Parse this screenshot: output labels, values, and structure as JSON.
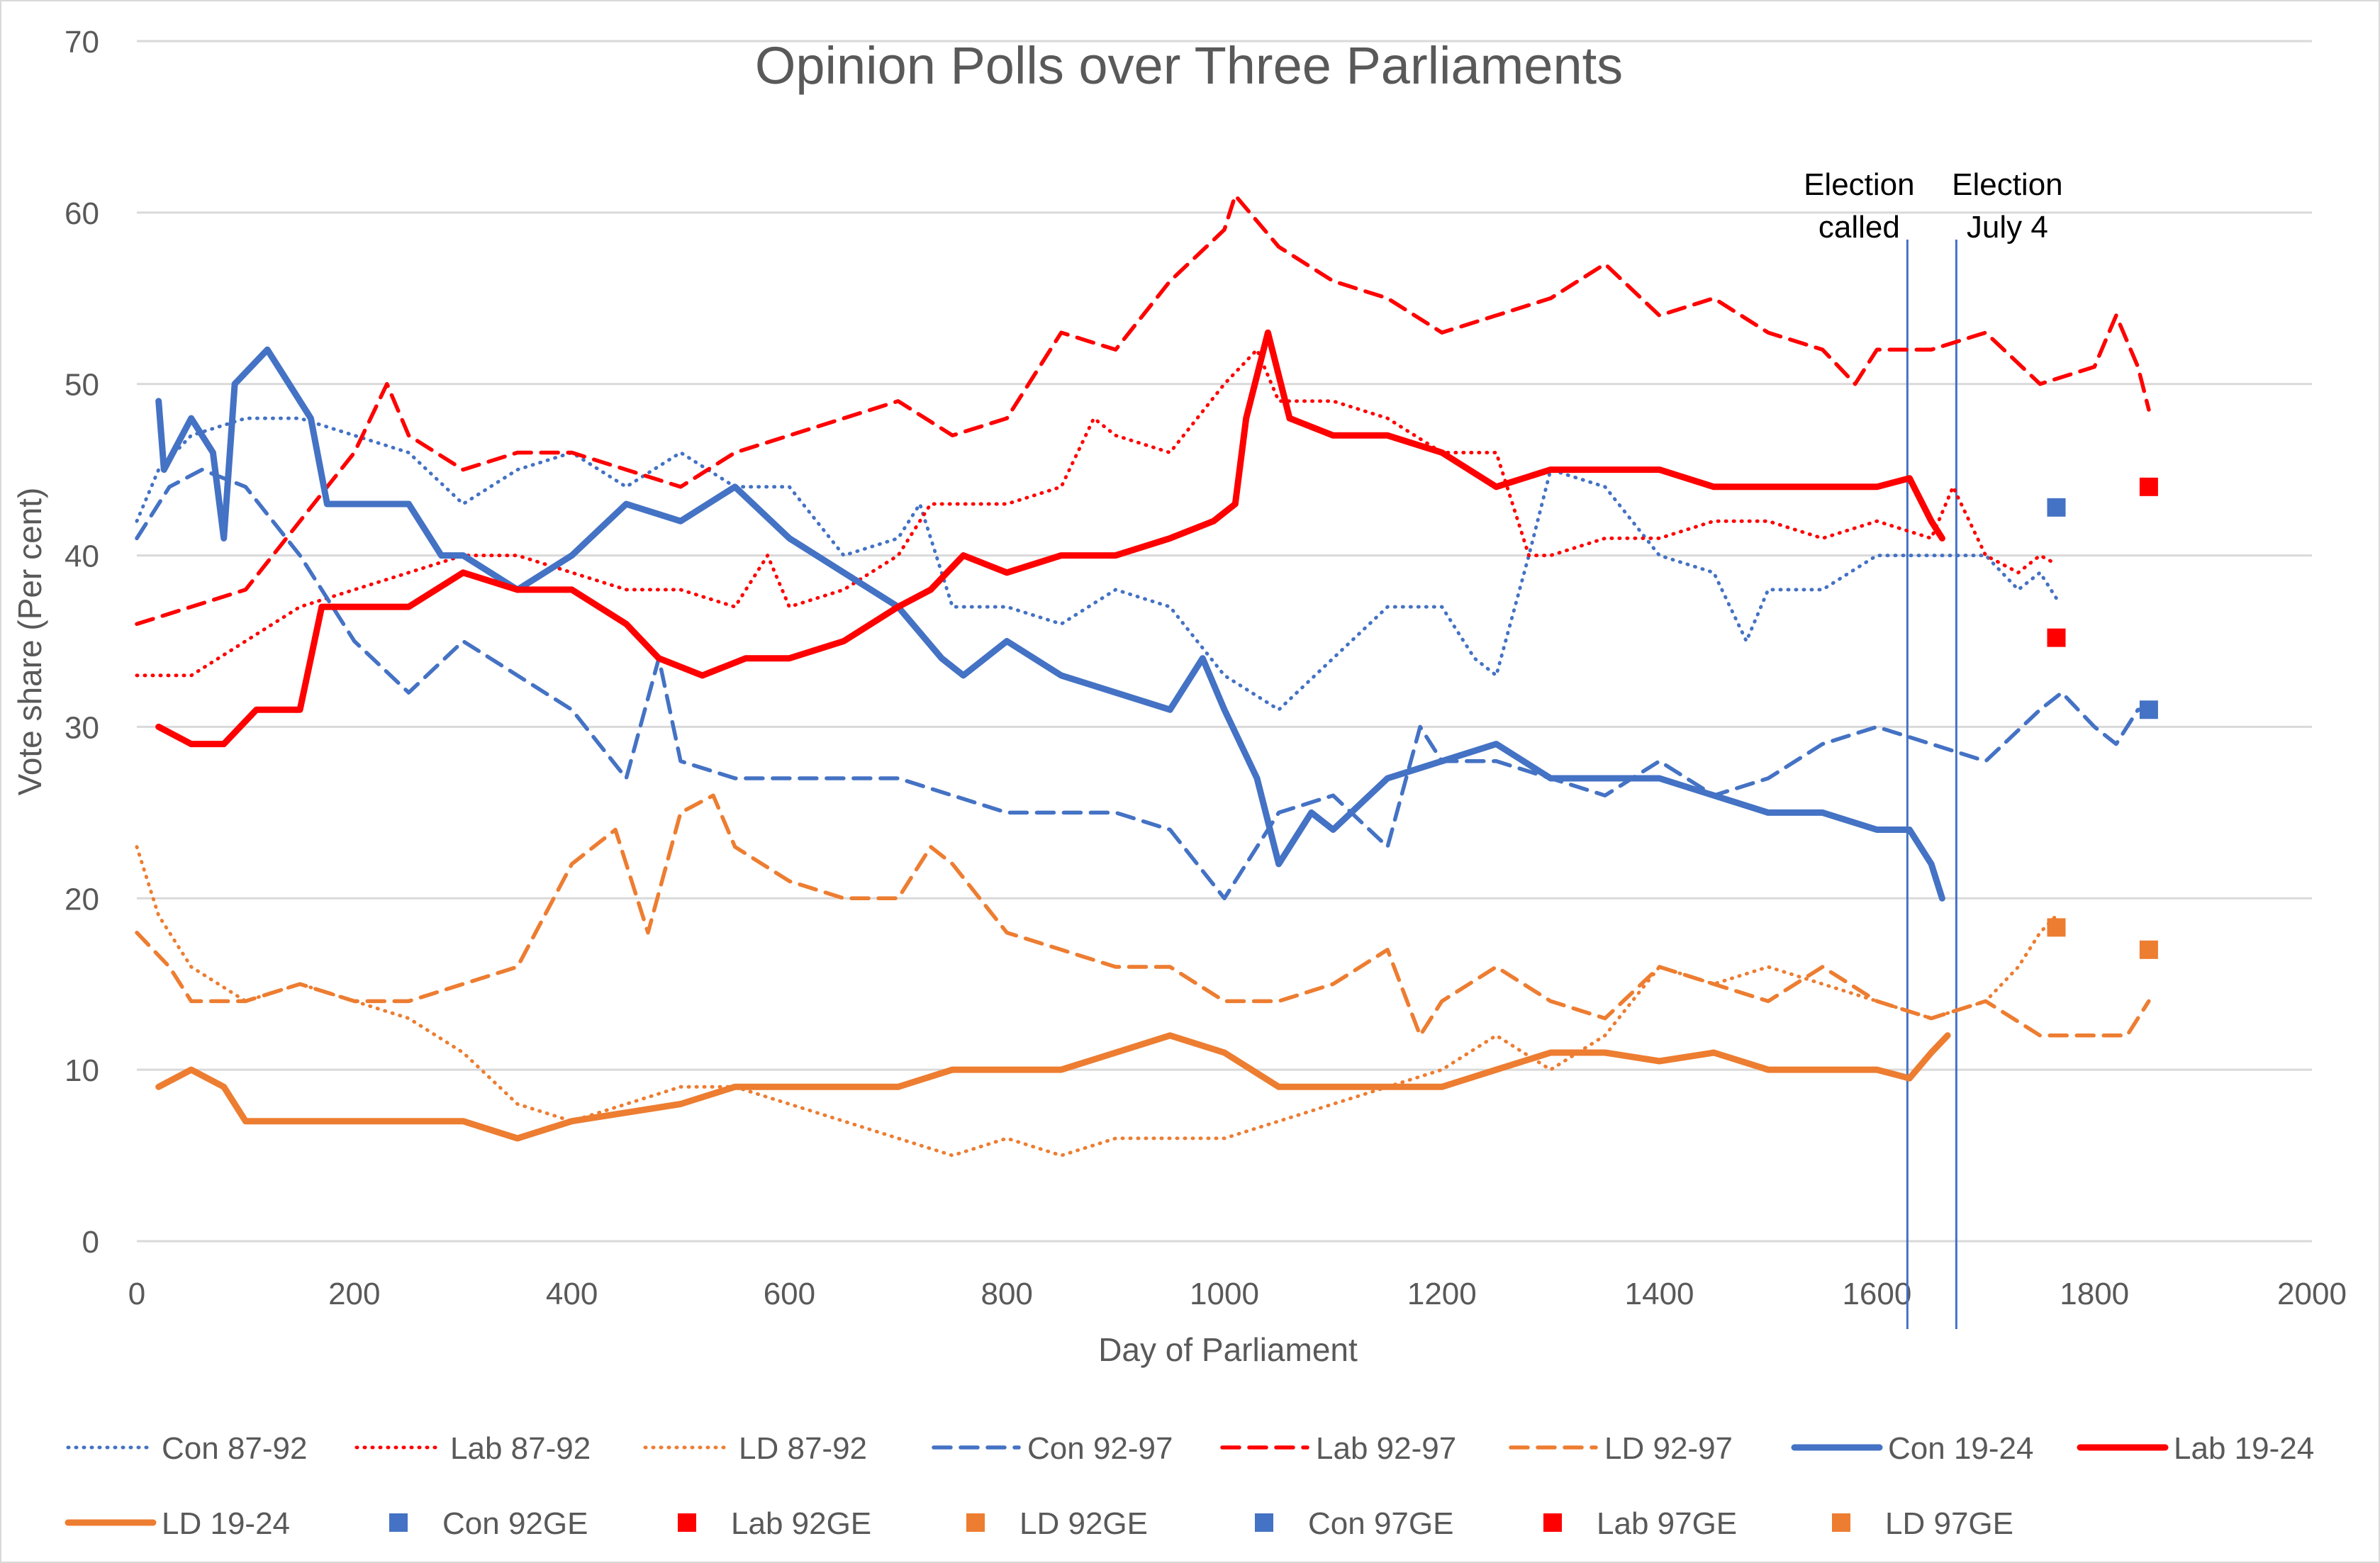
{
  "chart_data": {
    "type": "line",
    "title": "Opinion Polls over Three Parliaments",
    "xlabel": "Day of Parliament",
    "ylabel": "Vote share (Per cent)",
    "xlim": [
      0,
      2000
    ],
    "ylim": [
      0,
      70
    ],
    "xticks": [
      "0",
      "200",
      "400",
      "600",
      "800",
      "1000",
      "1200",
      "1400",
      "1600",
      "1800",
      "2000"
    ],
    "yticks": [
      "0",
      "10",
      "20",
      "30",
      "40",
      "50",
      "60",
      "70"
    ],
    "grid": "horizontal",
    "legend_position": "bottom",
    "colors": {
      "con": "#4472C4",
      "lab": "#FF0000",
      "ld": "#ED7D31",
      "vline": "#4472C4",
      "grid": "#D9D9D9"
    },
    "annotations": [
      {
        "lines": [
          "Election",
          "called"
        ],
        "x": 1628
      },
      {
        "lines": [
          "Election",
          "July 4"
        ],
        "x": 1673
      }
    ],
    "series": [
      {
        "name": "Con 87-92",
        "style": "dotted",
        "color": "#4472C4",
        "x": [
          0,
          20,
          50,
          100,
          150,
          200,
          250,
          300,
          350,
          400,
          450,
          500,
          550,
          600,
          650,
          700,
          720,
          750,
          800,
          850,
          900,
          950,
          1000,
          1050,
          1100,
          1150,
          1200,
          1230,
          1250,
          1280,
          1300,
          1350,
          1400,
          1450,
          1480,
          1500,
          1550,
          1600,
          1650,
          1700,
          1730,
          1750,
          1765
        ],
        "y": [
          42,
          45,
          47,
          48,
          48,
          47,
          46,
          43,
          45,
          46,
          44,
          46,
          44,
          44,
          40,
          41,
          43,
          37,
          37,
          36,
          38,
          37,
          33,
          31,
          34,
          37,
          37,
          34,
          33,
          40,
          45,
          44,
          40,
          39,
          35,
          38,
          38,
          40,
          40,
          40,
          38,
          39,
          37.5
        ]
      },
      {
        "name": "Lab 87-92",
        "style": "dotted",
        "color": "#FF0000",
        "x": [
          0,
          50,
          100,
          150,
          200,
          250,
          300,
          350,
          400,
          450,
          500,
          550,
          580,
          600,
          650,
          700,
          730,
          800,
          850,
          880,
          900,
          950,
          1000,
          1030,
          1050,
          1100,
          1150,
          1200,
          1250,
          1280,
          1300,
          1350,
          1400,
          1450,
          1500,
          1550,
          1600,
          1650,
          1670,
          1700,
          1730,
          1750,
          1765
        ],
        "y": [
          33,
          33,
          35,
          37,
          38,
          39,
          40,
          40,
          39,
          38,
          38,
          37,
          40,
          37,
          38,
          40,
          43,
          43,
          44,
          48,
          47,
          46,
          50,
          52,
          49,
          49,
          48,
          46,
          46,
          40,
          40,
          41,
          41,
          42,
          42,
          41,
          42,
          41,
          44,
          40,
          39,
          40,
          39.5
        ]
      },
      {
        "name": "LD 87-92",
        "style": "dotted",
        "color": "#ED7D31",
        "x": [
          0,
          20,
          50,
          100,
          150,
          200,
          250,
          300,
          350,
          400,
          450,
          500,
          550,
          600,
          650,
          700,
          750,
          800,
          850,
          900,
          950,
          1000,
          1050,
          1100,
          1150,
          1200,
          1250,
          1300,
          1350,
          1400,
          1450,
          1500,
          1550,
          1600,
          1650,
          1700,
          1730,
          1750,
          1765
        ],
        "y": [
          23,
          19,
          16,
          14,
          15,
          14,
          13,
          11,
          8,
          7,
          8,
          9,
          9,
          8,
          7,
          6,
          5,
          6,
          5,
          6,
          6,
          6,
          7,
          8,
          9,
          10,
          12,
          10,
          12,
          16,
          15,
          16,
          15,
          14,
          13,
          14,
          16,
          18,
          19
        ]
      },
      {
        "name": "Con 92-97",
        "style": "dashed",
        "color": "#4472C4",
        "x": [
          0,
          30,
          60,
          100,
          150,
          200,
          250,
          300,
          350,
          400,
          450,
          480,
          500,
          550,
          600,
          650,
          700,
          750,
          800,
          850,
          900,
          950,
          1000,
          1050,
          1100,
          1150,
          1180,
          1200,
          1250,
          1300,
          1350,
          1400,
          1450,
          1500,
          1550,
          1600,
          1650,
          1700,
          1750,
          1770,
          1800,
          1820,
          1840,
          1850
        ],
        "y": [
          41,
          44,
          45,
          44,
          40,
          35,
          32,
          35,
          33,
          31,
          27,
          34,
          28,
          27,
          27,
          27,
          27,
          26,
          25,
          25,
          25,
          24,
          20,
          25,
          26,
          23,
          30,
          28,
          28,
          27,
          26,
          28,
          26,
          27,
          29,
          30,
          29,
          28,
          31,
          32,
          30,
          29,
          31,
          31
        ]
      },
      {
        "name": "Lab 92-97",
        "style": "dashed",
        "color": "#FF0000",
        "x": [
          0,
          50,
          100,
          150,
          200,
          230,
          250,
          300,
          350,
          400,
          450,
          500,
          550,
          600,
          650,
          700,
          750,
          800,
          850,
          900,
          950,
          1000,
          1010,
          1050,
          1100,
          1150,
          1200,
          1250,
          1300,
          1350,
          1400,
          1450,
          1500,
          1550,
          1580,
          1600,
          1650,
          1700,
          1750,
          1800,
          1820,
          1840,
          1850
        ],
        "y": [
          36,
          37,
          38,
          42,
          46,
          50,
          47,
          45,
          46,
          46,
          45,
          44,
          46,
          47,
          48,
          49,
          47,
          48,
          53,
          52,
          56,
          59,
          61,
          58,
          56,
          55,
          53,
          54,
          55,
          57,
          54,
          55,
          53,
          52,
          50,
          52,
          52,
          53,
          50,
          51,
          54,
          51,
          48.5
        ]
      },
      {
        "name": "LD 92-97",
        "style": "dashed",
        "color": "#ED7D31",
        "x": [
          0,
          30,
          50,
          100,
          150,
          200,
          250,
          300,
          350,
          400,
          440,
          470,
          500,
          530,
          550,
          600,
          650,
          700,
          730,
          750,
          800,
          850,
          900,
          950,
          1000,
          1050,
          1100,
          1150,
          1180,
          1200,
          1250,
          1300,
          1350,
          1400,
          1450,
          1500,
          1550,
          1600,
          1650,
          1700,
          1750,
          1800,
          1830,
          1850
        ],
        "y": [
          18,
          16,
          14,
          14,
          15,
          14,
          14,
          15,
          16,
          22,
          24,
          18,
          25,
          26,
          23,
          21,
          20,
          20,
          23,
          22,
          18,
          17,
          16,
          16,
          14,
          14,
          15,
          17,
          12,
          14,
          16,
          14,
          13,
          16,
          15,
          14,
          16,
          14,
          13,
          14,
          12,
          12,
          12,
          14
        ]
      },
      {
        "name": "Con 19-24",
        "style": "solid",
        "color": "#4472C4",
        "x": [
          20,
          25,
          50,
          70,
          80,
          90,
          120,
          140,
          160,
          175,
          200,
          250,
          280,
          300,
          350,
          400,
          450,
          500,
          550,
          600,
          650,
          700,
          740,
          760,
          800,
          850,
          900,
          950,
          980,
          1000,
          1030,
          1050,
          1080,
          1100,
          1150,
          1200,
          1250,
          1300,
          1350,
          1400,
          1450,
          1500,
          1550,
          1600,
          1630,
          1650,
          1660
        ],
        "y": [
          49,
          45,
          48,
          46,
          41,
          50,
          52,
          50,
          48,
          43,
          43,
          43,
          40,
          40,
          38,
          40,
          43,
          42,
          44,
          41,
          39,
          37,
          34,
          33,
          35,
          33,
          32,
          31,
          34,
          31,
          27,
          22,
          25,
          24,
          27,
          28,
          29,
          27,
          27,
          27,
          26,
          25,
          25,
          24,
          24,
          22,
          20
        ]
      },
      {
        "name": "Lab 19-24",
        "style": "solid",
        "color": "#FF0000",
        "x": [
          20,
          50,
          80,
          110,
          150,
          170,
          200,
          250,
          300,
          350,
          400,
          450,
          480,
          520,
          560,
          600,
          650,
          700,
          730,
          760,
          800,
          850,
          900,
          950,
          990,
          1010,
          1020,
          1040,
          1060,
          1100,
          1150,
          1200,
          1250,
          1300,
          1350,
          1400,
          1450,
          1500,
          1550,
          1600,
          1630,
          1650,
          1660
        ],
        "y": [
          30,
          29,
          29,
          31,
          31,
          37,
          37,
          37,
          39,
          38,
          38,
          36,
          34,
          33,
          34,
          34,
          35,
          37,
          38,
          40,
          39,
          40,
          40,
          41,
          42,
          43,
          48,
          53,
          48,
          47,
          47,
          46,
          44,
          45,
          45,
          45,
          44,
          44,
          44,
          44,
          44.5,
          42,
          41
        ]
      },
      {
        "name": "LD 19-24",
        "style": "solid",
        "color": "#ED7D31",
        "x": [
          20,
          50,
          80,
          100,
          150,
          200,
          250,
          300,
          350,
          400,
          450,
          500,
          550,
          600,
          650,
          700,
          750,
          800,
          850,
          900,
          950,
          1000,
          1050,
          1100,
          1150,
          1200,
          1250,
          1300,
          1350,
          1400,
          1450,
          1500,
          1550,
          1600,
          1630,
          1650,
          1665
        ],
        "y": [
          9,
          10,
          9,
          7,
          7,
          7,
          7,
          7,
          6,
          7,
          7.5,
          8,
          9,
          9,
          9,
          9,
          10,
          10,
          10,
          11,
          12,
          11,
          9,
          9,
          9,
          9,
          10,
          11,
          11,
          10.5,
          11,
          10,
          10,
          10,
          9.5,
          11,
          12
        ]
      },
      {
        "name": "Con 92GE",
        "style": "marker",
        "color": "#4472C4",
        "x": [
          1765
        ],
        "y": [
          42.8
        ]
      },
      {
        "name": "Lab 92GE",
        "style": "marker",
        "color": "#FF0000",
        "x": [
          1765
        ],
        "y": [
          35.2
        ]
      },
      {
        "name": "LD 92GE",
        "style": "marker",
        "color": "#ED7D31",
        "x": [
          1765
        ],
        "y": [
          18.3
        ]
      },
      {
        "name": "Con 97GE",
        "style": "marker",
        "color": "#4472C4",
        "x": [
          1850
        ],
        "y": [
          31
        ]
      },
      {
        "name": "Lab 97GE",
        "style": "marker",
        "color": "#FF0000",
        "x": [
          1850
        ],
        "y": [
          44
        ]
      },
      {
        "name": "LD 97GE",
        "style": "marker",
        "color": "#ED7D31",
        "x": [
          1850
        ],
        "y": [
          17
        ]
      }
    ]
  }
}
